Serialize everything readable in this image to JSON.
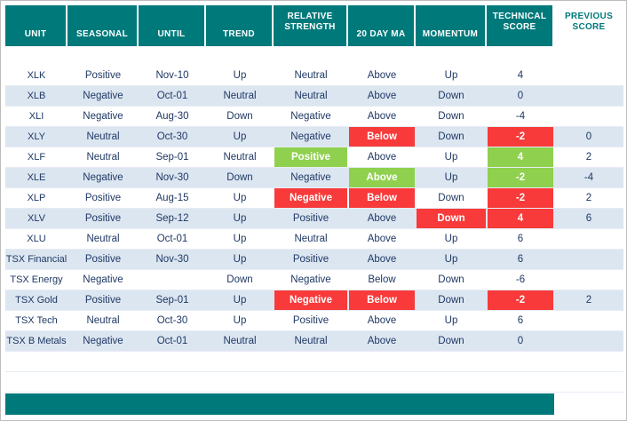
{
  "colors": {
    "teal": "#00797b",
    "red": "#f83a3a",
    "green": "#8fd04e",
    "alt_row": "#dce6f1",
    "text": "#1f3864"
  },
  "chart_data": {
    "type": "table",
    "columns": [
      {
        "key": "unit",
        "label": "UNIT"
      },
      {
        "key": "seasonal",
        "label": "SEASONAL"
      },
      {
        "key": "until",
        "label": "UNTIL"
      },
      {
        "key": "trend",
        "label": "TREND"
      },
      {
        "key": "relative_strength",
        "label": "RELATIVE STRENGTH"
      },
      {
        "key": "ma20",
        "label": "20 DAY MA"
      },
      {
        "key": "momentum",
        "label": "MOMENTUM"
      },
      {
        "key": "technical_score",
        "label": "TECHNICAL SCORE"
      },
      {
        "key": "previous_score",
        "label": "PREVIOUS SCORE"
      }
    ],
    "rows": [
      {
        "cells": {
          "unit": "XLK",
          "seasonal": "Positive",
          "until": "Nov-10",
          "trend": "Up",
          "relative_strength": "Neutral",
          "ma20": "Above",
          "momentum": "Up",
          "technical_score": "4",
          "previous_score": ""
        },
        "fills": {}
      },
      {
        "cells": {
          "unit": "XLB",
          "seasonal": "Negative",
          "until": "Oct-01",
          "trend": "Neutral",
          "relative_strength": "Neutral",
          "ma20": "Above",
          "momentum": "Down",
          "technical_score": "0",
          "previous_score": ""
        },
        "fills": {}
      },
      {
        "cells": {
          "unit": "XLI",
          "seasonal": "Negative",
          "until": "Aug-30",
          "trend": "Down",
          "relative_strength": "Negative",
          "ma20": "Above",
          "momentum": "Down",
          "technical_score": "-4",
          "previous_score": ""
        },
        "fills": {}
      },
      {
        "cells": {
          "unit": "XLY",
          "seasonal": "Neutral",
          "until": "Oct-30",
          "trend": "Up",
          "relative_strength": "Negative",
          "ma20": "Below",
          "momentum": "Down",
          "technical_score": "-2",
          "previous_score": "0"
        },
        "fills": {
          "ma20": "red",
          "technical_score": "red"
        }
      },
      {
        "cells": {
          "unit": "XLF",
          "seasonal": "Neutral",
          "until": "Sep-01",
          "trend": "Neutral",
          "relative_strength": "Positive",
          "ma20": "Above",
          "momentum": "Up",
          "technical_score": "4",
          "previous_score": "2"
        },
        "fills": {
          "relative_strength": "green",
          "technical_score": "green"
        }
      },
      {
        "cells": {
          "unit": "XLE",
          "seasonal": "Negative",
          "until": "Nov-30",
          "trend": "Down",
          "relative_strength": "Negative",
          "ma20": "Above",
          "momentum": "Up",
          "technical_score": "-2",
          "previous_score": "-4"
        },
        "fills": {
          "ma20": "green",
          "technical_score": "green"
        }
      },
      {
        "cells": {
          "unit": "XLP",
          "seasonal": "Positive",
          "until": "Aug-15",
          "trend": "Up",
          "relative_strength": "Negative",
          "ma20": "Below",
          "momentum": "Down",
          "technical_score": "-2",
          "previous_score": "2"
        },
        "fills": {
          "relative_strength": "red",
          "ma20": "red",
          "technical_score": "red"
        }
      },
      {
        "cells": {
          "unit": "XLV",
          "seasonal": "Positive",
          "until": "Sep-12",
          "trend": "Up",
          "relative_strength": "Positive",
          "ma20": "Above",
          "momentum": "Down",
          "technical_score": "4",
          "previous_score": "6"
        },
        "fills": {
          "momentum": "red",
          "technical_score": "red"
        }
      },
      {
        "cells": {
          "unit": "XLU",
          "seasonal": "Neutral",
          "until": "Oct-01",
          "trend": "Up",
          "relative_strength": "Neutral",
          "ma20": "Above",
          "momentum": "Up",
          "technical_score": "6",
          "previous_score": ""
        },
        "fills": {}
      },
      {
        "cells": {
          "unit": "TSX Financial",
          "seasonal": "Positive",
          "until": "Nov-30",
          "trend": "Up",
          "relative_strength": "Positive",
          "ma20": "Above",
          "momentum": "Up",
          "technical_score": "6",
          "previous_score": ""
        },
        "fills": {}
      },
      {
        "cells": {
          "unit": "TSX Energy",
          "seasonal": "Negative",
          "until": "",
          "trend": "Down",
          "relative_strength": "Negative",
          "ma20": "Below",
          "momentum": "Down",
          "technical_score": "-6",
          "previous_score": ""
        },
        "fills": {}
      },
      {
        "cells": {
          "unit": "TSX Gold",
          "seasonal": "Positive",
          "until": "Sep-01",
          "trend": "Up",
          "relative_strength": "Negative",
          "ma20": "Below",
          "momentum": "Down",
          "technical_score": "-2",
          "previous_score": "2"
        },
        "fills": {
          "relative_strength": "red",
          "ma20": "red",
          "technical_score": "red"
        }
      },
      {
        "cells": {
          "unit": "TSX Tech",
          "seasonal": "Neutral",
          "until": "Oct-30",
          "trend": "Up",
          "relative_strength": "Positive",
          "ma20": "Above",
          "momentum": "Up",
          "technical_score": "6",
          "previous_score": ""
        },
        "fills": {}
      },
      {
        "cells": {
          "unit": "TSX B Metals",
          "seasonal": "Negative",
          "until": "Oct-01",
          "trend": "Neutral",
          "relative_strength": "Neutral",
          "ma20": "Above",
          "momentum": "Down",
          "technical_score": "0",
          "previous_score": ""
        },
        "fills": {}
      }
    ]
  }
}
